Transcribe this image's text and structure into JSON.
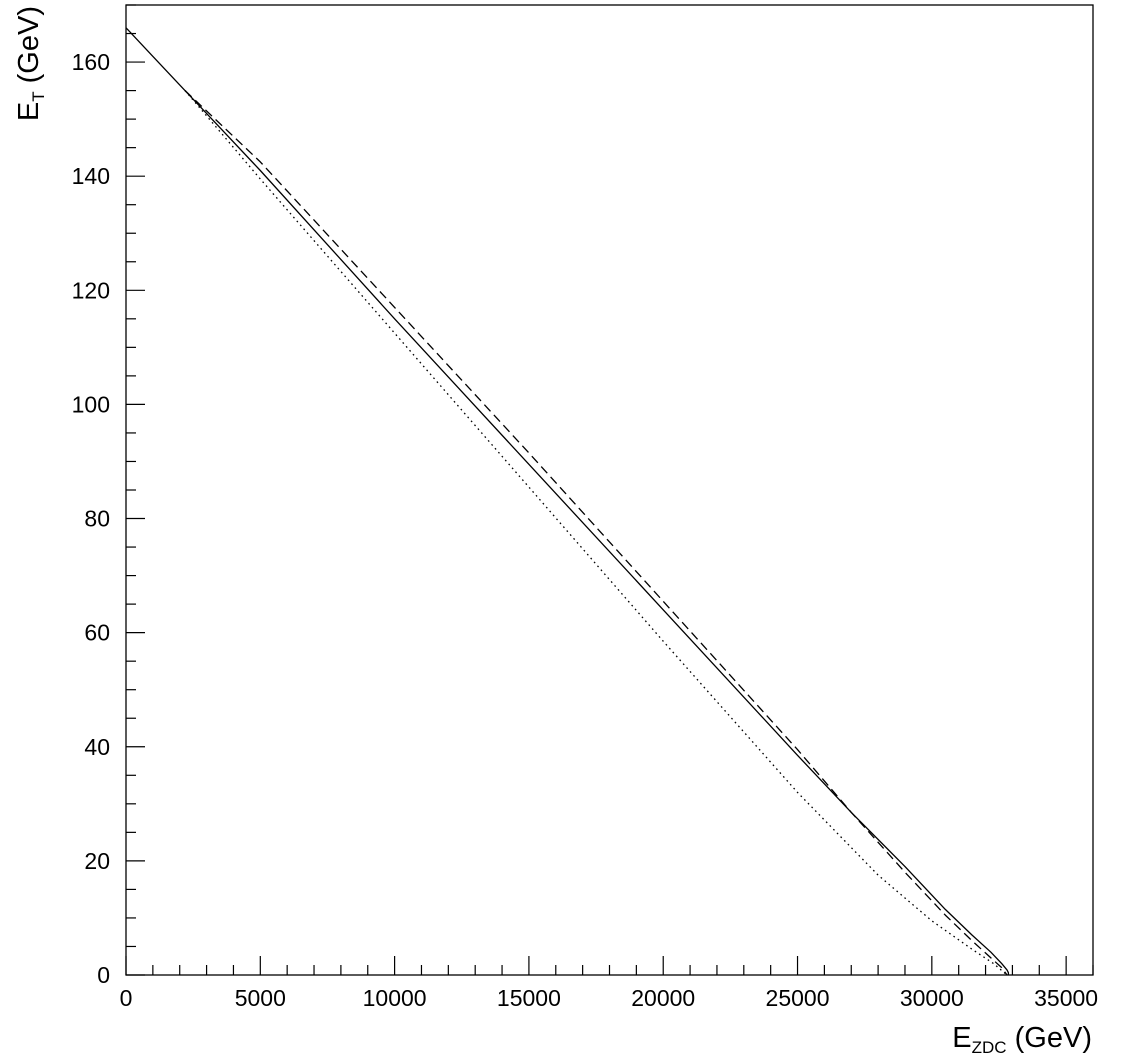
{
  "chart_data": {
    "type": "line",
    "xlabel": {
      "main": "E",
      "sub": "ZDC",
      "unit": " (GeV)"
    },
    "ylabel": {
      "main": "E",
      "sub": "T",
      "unit": " (GeV)"
    },
    "xlim": [
      0,
      36000
    ],
    "ylim": [
      0,
      170
    ],
    "x_ticks": [
      0,
      5000,
      10000,
      15000,
      20000,
      25000,
      30000,
      35000
    ],
    "x_tick_labels": [
      "0",
      "5000",
      "10000",
      "15000",
      "20000",
      "25000",
      "30000",
      "35000"
    ],
    "y_ticks": [
      0,
      20,
      40,
      60,
      80,
      100,
      120,
      140,
      160
    ],
    "y_tick_labels": [
      "0",
      "20",
      "40",
      "60",
      "80",
      "100",
      "120",
      "140",
      "160"
    ],
    "x_minor_step": 1000,
    "y_minor_step": 5,
    "grid": false,
    "legend": "none",
    "series": [
      {
        "style": "solid",
        "x": [
          0,
          1000,
          2000,
          5000,
          10000,
          15000,
          20000,
          25000,
          27000,
          29000,
          30500,
          31500,
          32200,
          32600,
          32800,
          32850,
          32850
        ],
        "y": [
          166,
          161,
          156,
          141,
          115,
          89.5,
          64,
          38.5,
          28.5,
          19,
          11.5,
          7,
          4,
          2,
          0.9,
          0.4,
          0
        ]
      },
      {
        "style": "dashed",
        "x": [
          2200,
          5000,
          10000,
          15000,
          20000,
          25000,
          27000,
          29000,
          30500,
          31500,
          32200,
          32600,
          32800
        ],
        "y": [
          155,
          142.5,
          117,
          91.5,
          65.5,
          39.5,
          28.5,
          18,
          10.5,
          6,
          3,
          1.3,
          0
        ]
      },
      {
        "style": "dotted",
        "x": [
          2200,
          5000,
          10000,
          15000,
          20000,
          25000,
          28000,
          30000,
          31500,
          32300,
          32800
        ],
        "y": [
          155,
          139.5,
          112.5,
          85.5,
          58.5,
          32,
          17.5,
          9.5,
          4.5,
          2,
          0
        ]
      }
    ]
  }
}
